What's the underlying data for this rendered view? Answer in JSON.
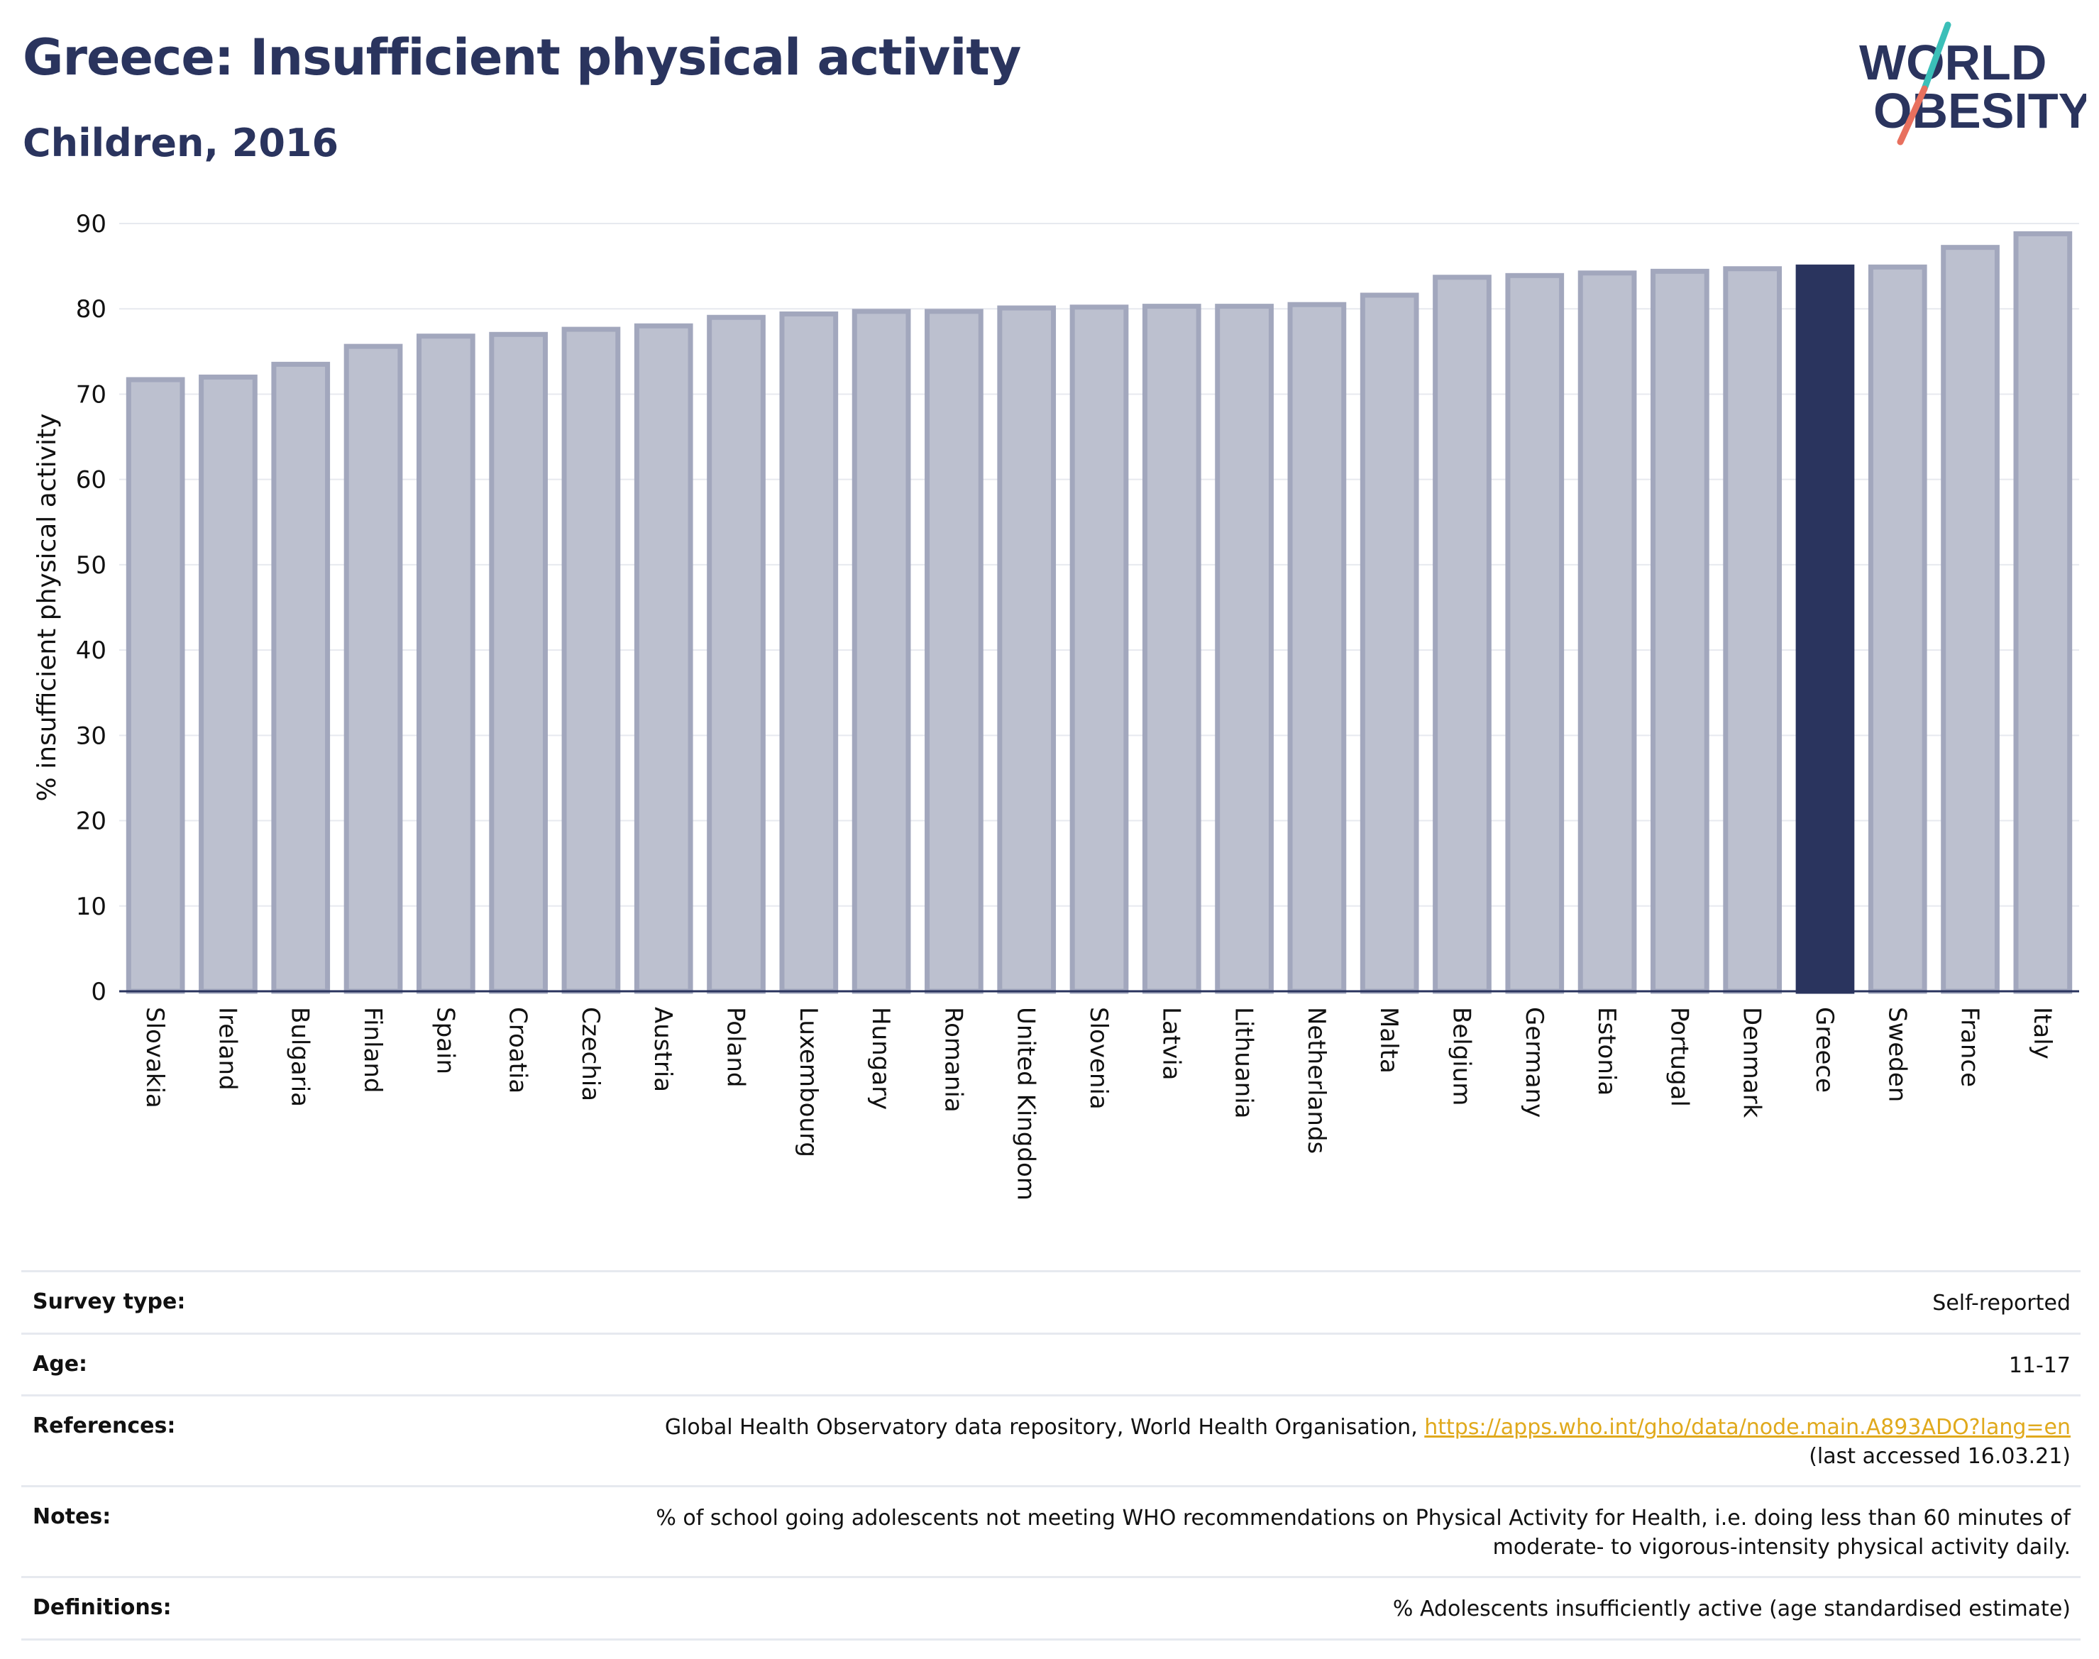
{
  "header": {
    "title": "Greece: Insufficient physical activity",
    "subtitle": "Children, 2016"
  },
  "logo": {
    "line1": "WORLD",
    "line2": "OBESITY",
    "colors": {
      "text": "#2a345e",
      "slash_top": "#3bbfb8",
      "slash_bottom": "#e8705e"
    }
  },
  "chart_data": {
    "type": "bar",
    "title": "Greece: Insufficient physical activity",
    "subtitle": "Children, 2016",
    "ylabel": "% insufficient physical activity",
    "xlabel": "",
    "ylim": [
      0,
      90
    ],
    "yticks": [
      0,
      10,
      20,
      30,
      40,
      50,
      60,
      70,
      80,
      90
    ],
    "grid": true,
    "highlight": "Greece",
    "colors": {
      "bar": "#bcc0cf",
      "bar_border": "#a2a7bd",
      "highlight": "#2a345e",
      "axis": "#2a345e",
      "grid": "#e7e9ef"
    },
    "categories": [
      "Slovakia",
      "Ireland",
      "Bulgaria",
      "Finland",
      "Spain",
      "Croatia",
      "Czechia",
      "Austria",
      "Poland",
      "Luxembourg",
      "Hungary",
      "Romania",
      "United Kingdom",
      "Slovenia",
      "Latvia",
      "Lithuania",
      "Netherlands",
      "Malta",
      "Belgium",
      "Germany",
      "Estonia",
      "Portugal",
      "Denmark",
      "Greece",
      "Sweden",
      "France",
      "Italy"
    ],
    "values": [
      71.7,
      72.0,
      73.5,
      75.6,
      76.8,
      77.0,
      77.6,
      78.0,
      79.0,
      79.4,
      79.7,
      79.7,
      80.1,
      80.2,
      80.3,
      80.3,
      80.5,
      81.6,
      83.7,
      83.9,
      84.2,
      84.4,
      84.7,
      84.9,
      84.9,
      87.2,
      88.8
    ]
  },
  "footer": {
    "rows": [
      {
        "label": "Survey type:",
        "value": "Self-reported"
      },
      {
        "label": "Age:",
        "value": "11-17"
      },
      {
        "label": "References:",
        "value_prefix": "Global Health Observatory data repository, World Health Organisation, ",
        "link": "https://apps.who.int/gho/data/node.main.A893ADO?lang=en",
        "value_suffix": "(last accessed 16.03.21)"
      },
      {
        "label": "Notes:",
        "value_line1": "% of school going adolescents not meeting WHO recommendations on Physical Activity for Health, i.e. doing less than 60 minutes of",
        "value_line2": "moderate- to vigorous-intensity physical activity daily."
      },
      {
        "label": "Definitions:",
        "value": "% Adolescents insufficiently active (age standardised estimate)"
      }
    ]
  }
}
